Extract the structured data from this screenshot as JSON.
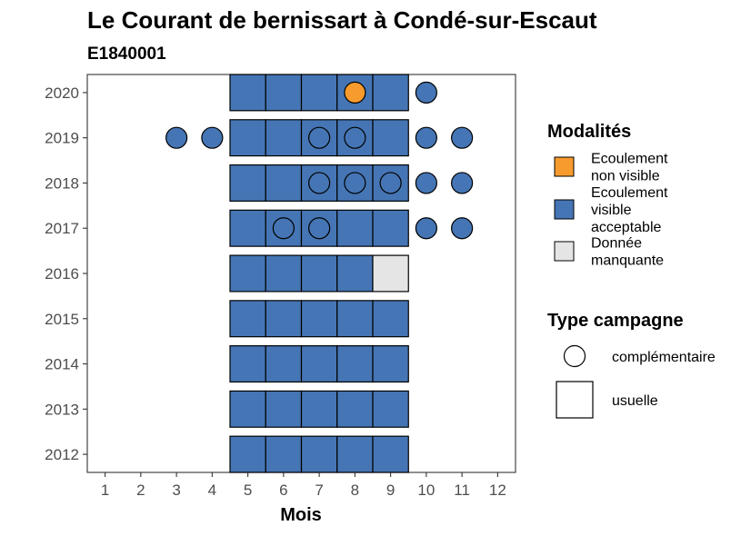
{
  "chart_data": {
    "type": "heatmap",
    "title": "Le Courant de bernissart à Condé-sur-Escaut",
    "subtitle": "E1840001",
    "xlabel": "Mois",
    "ylabel": "",
    "x_ticks": [
      "1",
      "2",
      "3",
      "4",
      "5",
      "6",
      "7",
      "8",
      "9",
      "10",
      "11",
      "12"
    ],
    "y_ticks": [
      "2012",
      "2013",
      "2014",
      "2015",
      "2016",
      "2017",
      "2018",
      "2019",
      "2020"
    ],
    "xlim": [
      0.5,
      12.5
    ],
    "ylim": [
      2011.6,
      2020.4
    ],
    "grid": false,
    "colors": {
      "ecoulement_non_visible": "#F79B2E",
      "ecoulement_visible_acceptable": "#4575B4",
      "donnee_manquante": "#E5E5E5"
    },
    "legend": {
      "placement": "right",
      "modalites_title": "Modalités",
      "modalites": [
        {
          "key": "ecoulement_non_visible",
          "lines": [
            "Ecoulement",
            "non visible"
          ]
        },
        {
          "key": "ecoulement_visible_acceptable",
          "lines": [
            "Ecoulement",
            "visible",
            "acceptable"
          ]
        },
        {
          "key": "donnee_manquante",
          "lines": [
            "Donnée",
            "manquante"
          ]
        }
      ],
      "campagne_title": "Type campagne",
      "campagnes": [
        {
          "key": "complementaire",
          "label": "complémentaire",
          "shape": "circle"
        },
        {
          "key": "usuelle",
          "label": "usuelle",
          "shape": "square"
        }
      ]
    },
    "usuelle": [
      {
        "year": 2012,
        "month": 5,
        "modalite": "ecoulement_visible_acceptable"
      },
      {
        "year": 2012,
        "month": 6,
        "modalite": "ecoulement_visible_acceptable"
      },
      {
        "year": 2012,
        "month": 7,
        "modalite": "ecoulement_visible_acceptable"
      },
      {
        "year": 2012,
        "month": 8,
        "modalite": "ecoulement_visible_acceptable"
      },
      {
        "year": 2012,
        "month": 9,
        "modalite": "ecoulement_visible_acceptable"
      },
      {
        "year": 2013,
        "month": 5,
        "modalite": "ecoulement_visible_acceptable"
      },
      {
        "year": 2013,
        "month": 6,
        "modalite": "ecoulement_visible_acceptable"
      },
      {
        "year": 2013,
        "month": 7,
        "modalite": "ecoulement_visible_acceptable"
      },
      {
        "year": 2013,
        "month": 8,
        "modalite": "ecoulement_visible_acceptable"
      },
      {
        "year": 2013,
        "month": 9,
        "modalite": "ecoulement_visible_acceptable"
      },
      {
        "year": 2014,
        "month": 5,
        "modalite": "ecoulement_visible_acceptable"
      },
      {
        "year": 2014,
        "month": 6,
        "modalite": "ecoulement_visible_acceptable"
      },
      {
        "year": 2014,
        "month": 7,
        "modalite": "ecoulement_visible_acceptable"
      },
      {
        "year": 2014,
        "month": 8,
        "modalite": "ecoulement_visible_acceptable"
      },
      {
        "year": 2014,
        "month": 9,
        "modalite": "ecoulement_visible_acceptable"
      },
      {
        "year": 2015,
        "month": 5,
        "modalite": "ecoulement_visible_acceptable"
      },
      {
        "year": 2015,
        "month": 6,
        "modalite": "ecoulement_visible_acceptable"
      },
      {
        "year": 2015,
        "month": 7,
        "modalite": "ecoulement_visible_acceptable"
      },
      {
        "year": 2015,
        "month": 8,
        "modalite": "ecoulement_visible_acceptable"
      },
      {
        "year": 2015,
        "month": 9,
        "modalite": "ecoulement_visible_acceptable"
      },
      {
        "year": 2016,
        "month": 5,
        "modalite": "ecoulement_visible_acceptable"
      },
      {
        "year": 2016,
        "month": 6,
        "modalite": "ecoulement_visible_acceptable"
      },
      {
        "year": 2016,
        "month": 7,
        "modalite": "ecoulement_visible_acceptable"
      },
      {
        "year": 2016,
        "month": 8,
        "modalite": "ecoulement_visible_acceptable"
      },
      {
        "year": 2016,
        "month": 9,
        "modalite": "donnee_manquante"
      },
      {
        "year": 2017,
        "month": 5,
        "modalite": "ecoulement_visible_acceptable"
      },
      {
        "year": 2017,
        "month": 6,
        "modalite": "ecoulement_visible_acceptable"
      },
      {
        "year": 2017,
        "month": 7,
        "modalite": "ecoulement_visible_acceptable"
      },
      {
        "year": 2017,
        "month": 8,
        "modalite": "ecoulement_visible_acceptable"
      },
      {
        "year": 2017,
        "month": 9,
        "modalite": "ecoulement_visible_acceptable"
      },
      {
        "year": 2018,
        "month": 5,
        "modalite": "ecoulement_visible_acceptable"
      },
      {
        "year": 2018,
        "month": 6,
        "modalite": "ecoulement_visible_acceptable"
      },
      {
        "year": 2018,
        "month": 7,
        "modalite": "ecoulement_visible_acceptable"
      },
      {
        "year": 2018,
        "month": 8,
        "modalite": "ecoulement_visible_acceptable"
      },
      {
        "year": 2018,
        "month": 9,
        "modalite": "ecoulement_visible_acceptable"
      },
      {
        "year": 2019,
        "month": 5,
        "modalite": "ecoulement_visible_acceptable"
      },
      {
        "year": 2019,
        "month": 6,
        "modalite": "ecoulement_visible_acceptable"
      },
      {
        "year": 2019,
        "month": 7,
        "modalite": "ecoulement_visible_acceptable"
      },
      {
        "year": 2019,
        "month": 8,
        "modalite": "ecoulement_visible_acceptable"
      },
      {
        "year": 2019,
        "month": 9,
        "modalite": "ecoulement_visible_acceptable"
      },
      {
        "year": 2020,
        "month": 5,
        "modalite": "ecoulement_visible_acceptable"
      },
      {
        "year": 2020,
        "month": 6,
        "modalite": "ecoulement_visible_acceptable"
      },
      {
        "year": 2020,
        "month": 7,
        "modalite": "ecoulement_visible_acceptable"
      },
      {
        "year": 2020,
        "month": 8,
        "modalite": "ecoulement_visible_acceptable"
      },
      {
        "year": 2020,
        "month": 9,
        "modalite": "ecoulement_visible_acceptable"
      }
    ],
    "complementaire": [
      {
        "year": 2020,
        "month": 8,
        "modalite": "ecoulement_non_visible"
      },
      {
        "year": 2020,
        "month": 10,
        "modalite": "ecoulement_visible_acceptable"
      },
      {
        "year": 2019,
        "month": 3,
        "modalite": "ecoulement_visible_acceptable"
      },
      {
        "year": 2019,
        "month": 4,
        "modalite": "ecoulement_visible_acceptable"
      },
      {
        "year": 2019,
        "month": 7,
        "modalite": "ecoulement_visible_acceptable"
      },
      {
        "year": 2019,
        "month": 8,
        "modalite": "ecoulement_visible_acceptable"
      },
      {
        "year": 2019,
        "month": 10,
        "modalite": "ecoulement_visible_acceptable"
      },
      {
        "year": 2019,
        "month": 11,
        "modalite": "ecoulement_visible_acceptable"
      },
      {
        "year": 2018,
        "month": 7,
        "modalite": "ecoulement_visible_acceptable"
      },
      {
        "year": 2018,
        "month": 8,
        "modalite": "ecoulement_visible_acceptable"
      },
      {
        "year": 2018,
        "month": 9,
        "modalite": "ecoulement_visible_acceptable"
      },
      {
        "year": 2018,
        "month": 10,
        "modalite": "ecoulement_visible_acceptable"
      },
      {
        "year": 2018,
        "month": 11,
        "modalite": "ecoulement_visible_acceptable"
      },
      {
        "year": 2017,
        "month": 6,
        "modalite": "ecoulement_visible_acceptable"
      },
      {
        "year": 2017,
        "month": 7,
        "modalite": "ecoulement_visible_acceptable"
      },
      {
        "year": 2017,
        "month": 10,
        "modalite": "ecoulement_visible_acceptable"
      },
      {
        "year": 2017,
        "month": 11,
        "modalite": "ecoulement_visible_acceptable"
      }
    ]
  }
}
